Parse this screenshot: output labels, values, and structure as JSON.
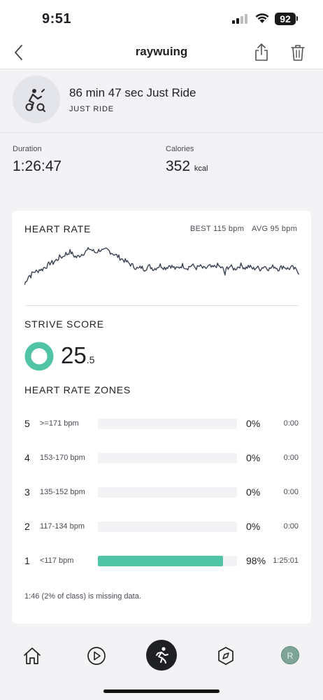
{
  "status_bar": {
    "time": "9:51",
    "battery": "92"
  },
  "nav": {
    "title": "raywuing"
  },
  "class": {
    "title": "86 min 47 sec Just Ride",
    "subtitle": "JUST RIDE"
  },
  "stats": {
    "duration": {
      "label": "Duration",
      "value": "1:26:47"
    },
    "calories": {
      "label": "Calories",
      "value": "352",
      "unit": "kcal"
    }
  },
  "heart_rate": {
    "title": "HEART RATE",
    "best": "BEST 115 bpm",
    "avg": "AVG 95 bpm",
    "chart_data": {
      "type": "line",
      "series_values": [
        78,
        82,
        85,
        88,
        87,
        90,
        91,
        92,
        91,
        93,
        94,
        93,
        95,
        96,
        97,
        98,
        100,
        101,
        100,
        102,
        103,
        104,
        106,
        107,
        106,
        108,
        110,
        109,
        111,
        112,
        110,
        108,
        107,
        106,
        107,
        108,
        109,
        110,
        111,
        112,
        113,
        115,
        114,
        113,
        112,
        111,
        112,
        113,
        114,
        113,
        112,
        113,
        114,
        113,
        112,
        111,
        110,
        109,
        108,
        107,
        106,
        105,
        104,
        103,
        102,
        101,
        100,
        99,
        98,
        97,
        96,
        95,
        94,
        95,
        96,
        95,
        94,
        95,
        96,
        97,
        96,
        95,
        94,
        95,
        96,
        97,
        98,
        97,
        96,
        95,
        96,
        97,
        98,
        97,
        96,
        95,
        94,
        95,
        96,
        97,
        98,
        97,
        96,
        95,
        96,
        97,
        98,
        97,
        96,
        95,
        96,
        97,
        96,
        95,
        94,
        95,
        96,
        97,
        96,
        95,
        96,
        97,
        98,
        97,
        96,
        95,
        94,
        88,
        95,
        96,
        97,
        96,
        95,
        94,
        95,
        96,
        97,
        98,
        97,
        96,
        95,
        96,
        97,
        96,
        95,
        94,
        95,
        96,
        95,
        94,
        95,
        96,
        97,
        96,
        95,
        94,
        95,
        96,
        97,
        96,
        95,
        94,
        95,
        96,
        97,
        96,
        95,
        94,
        95,
        96,
        95,
        94,
        93,
        92,
        90
      ],
      "ylim": [
        70,
        120
      ]
    }
  },
  "strive": {
    "title": "STRIVE SCORE",
    "value_int": "25",
    "value_dec": ".5",
    "ring_color": "#52c4a6"
  },
  "zones": {
    "title": "HEART RATE ZONES",
    "rows": [
      {
        "num": "5",
        "range": ">=171 bpm",
        "pct": "0%",
        "time": "0:00",
        "fraction": 0
      },
      {
        "num": "4",
        "range": "153-170 bpm",
        "pct": "0%",
        "time": "0:00",
        "fraction": 0
      },
      {
        "num": "3",
        "range": "135-152 bpm",
        "pct": "0%",
        "time": "0:00",
        "fraction": 0
      },
      {
        "num": "2",
        "range": "117-134 bpm",
        "pct": "0%",
        "time": "0:00",
        "fraction": 0
      },
      {
        "num": "1",
        "range": "<117 bpm",
        "pct": "98%",
        "time": "1:25:01",
        "fraction": 0.98
      }
    ],
    "missing_note": "1:46 (2% of class) is missing data.",
    "bar_color": "#52c4a6"
  },
  "tabbar": {
    "avatar_initial": "R"
  }
}
